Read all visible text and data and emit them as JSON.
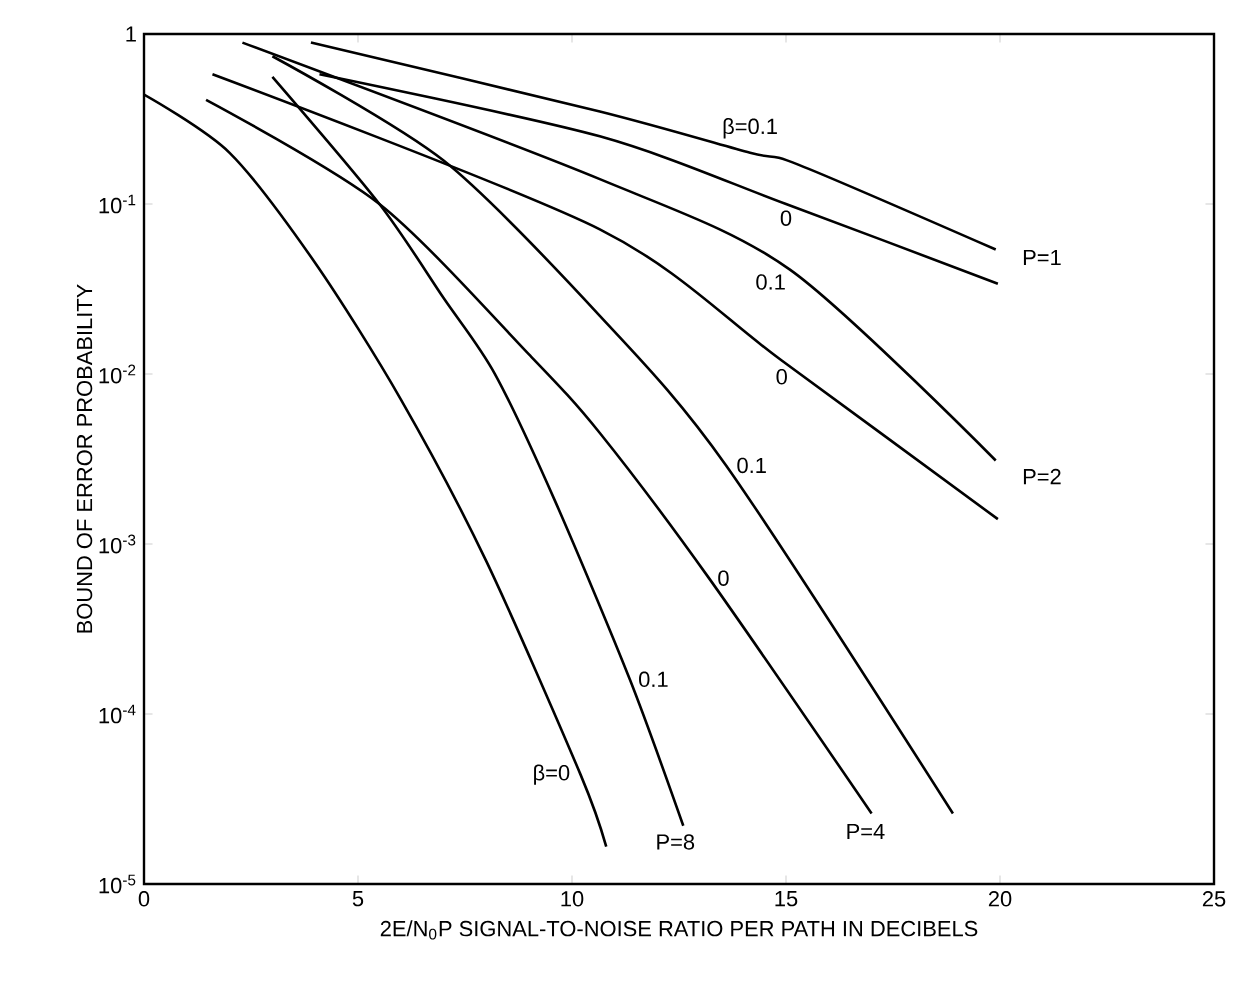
{
  "chart_data": {
    "type": "line",
    "log": "y",
    "marker": "none",
    "line_style": "solid",
    "xlabel": "2E/N$_{0}$P SIGNAL-TO-NOISE RATIO PER PATH IN DECIBELS",
    "ylabel": "BOUND OF ERROR PROBABILITY",
    "xlim": [
      0,
      25
    ],
    "ylim": [
      1e-05,
      1
    ],
    "xticks": [
      0,
      5,
      10,
      15,
      20,
      25
    ],
    "yticks": [
      {
        "value": 1e-05,
        "label": "10$^{-5}$"
      },
      {
        "value": 0.0001,
        "label": "10$^{-4}$"
      },
      {
        "value": 0.001,
        "label": "10$^{-3}$"
      },
      {
        "value": 0.01,
        "label": "10$^{-2}$"
      },
      {
        "value": 0.1,
        "label": "10$^{-1}$"
      },
      {
        "value": 1,
        "label": "1"
      }
    ],
    "series": [
      {
        "color": "#000000",
        "x": [
          3.9,
          10.65,
          14.16,
          15.3,
          19.9
        ],
        "values": [
          0.89,
          0.35,
          0.2,
          0.17,
          0.054
        ]
      },
      {
        "color": "#000000",
        "x": [
          4.1,
          10.65,
          15,
          19.95
        ],
        "values": [
          0.58,
          0.25,
          0.1,
          0.034
        ]
      },
      {
        "color": "#000000",
        "x": [
          2.3,
          10.65,
          15.1,
          19.9
        ],
        "values": [
          0.89,
          0.14,
          0.041,
          0.0031
        ]
      },
      {
        "color": "#000000",
        "x": [
          1.6,
          10.65,
          14.9,
          19.95
        ],
        "values": [
          0.58,
          0.071,
          0.012,
          0.0014
        ]
      },
      {
        "color": "#000000",
        "x": [
          3,
          7,
          10.65,
          13.6,
          18.9
        ],
        "values": [
          0.74,
          0.18,
          0.022,
          0.0029,
          2.6e-05
        ]
      },
      {
        "color": "#000000",
        "x": [
          1.45,
          5.5,
          9,
          10.65,
          13.2,
          17
        ],
        "values": [
          0.41,
          0.1,
          0.013,
          0.0045,
          0.00063,
          2.6e-05
        ]
      },
      {
        "color": "#000000",
        "x": [
          3,
          5.5,
          7,
          8.2,
          9.6,
          11.35,
          12.6
        ],
        "values": [
          0.56,
          0.1,
          0.028,
          0.01,
          0.0018,
          0.00016,
          2.2e-05
        ]
      },
      {
        "color": "#000000",
        "x": [
          0,
          2,
          4,
          6,
          8,
          10.2,
          10.8
        ],
        "values": [
          0.44,
          0.2,
          0.045,
          0.0071,
          0.00079,
          4.4e-05,
          1.66e-05
        ]
      }
    ],
    "annotations": [
      {
        "text": "β=0.1",
        "x": 14.16,
        "y": 0.2
      },
      {
        "text": "0",
        "x": 15,
        "y": 0.1
      },
      {
        "text": "0.1",
        "x": 15.1,
        "y": 0.041
      },
      {
        "text": "0",
        "x": 14.9,
        "y": 0.012
      },
      {
        "text": "0.1",
        "x": 13.6,
        "y": 0.0029
      },
      {
        "text": "0",
        "x": 13.2,
        "y": 0.00063
      },
      {
        "text": "0.1",
        "x": 11.35,
        "y": 0.00016
      },
      {
        "text": "β=0",
        "x": 10.2,
        "y": 4.4e-05
      },
      {
        "text": "P=1",
        "x": 19.9,
        "y": 0.054
      },
      {
        "text": "P=2",
        "x": 19.9,
        "y": 0.0031
      },
      {
        "text": "P=4",
        "x": 17,
        "y": 2.6e-05
      },
      {
        "text": "P=8",
        "x": 12.6,
        "y": 2.2e-05
      }
    ]
  }
}
